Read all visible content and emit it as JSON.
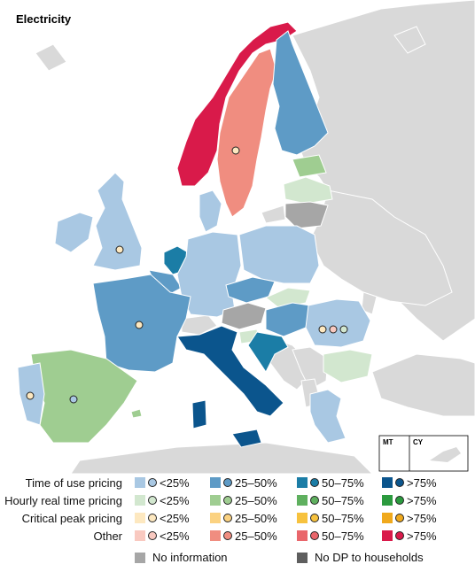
{
  "title": "Electricity",
  "inset": {
    "left_label": "MT",
    "right_label": "CY"
  },
  "legend": {
    "rows": [
      {
        "label": "Time of use  pricing",
        "items": [
          {
            "text": "<25%",
            "color": "#a9c8e3",
            "dot": "#a9c8e3"
          },
          {
            "text": "25–50%",
            "color": "#5e9bc6",
            "dot": "#5e9bc6"
          },
          {
            "text": "50–75%",
            "color": "#1b7da6",
            "dot": "#1b7da6"
          },
          {
            "text": ">75%",
            "color": "#0b558d",
            "dot": "#0b558d"
          }
        ]
      },
      {
        "label": "Hourly real time pricing",
        "items": [
          {
            "text": "<25%",
            "color": "#d2e7cf",
            "dot": "#d2e7cf"
          },
          {
            "text": "25–50%",
            "color": "#9fcd91",
            "dot": "#9fcd91"
          },
          {
            "text": "50–75%",
            "color": "#5fb05f",
            "dot": "#5fb05f"
          },
          {
            "text": ">75%",
            "color": "#2b9a3e",
            "dot": "#2b9a3e"
          }
        ]
      },
      {
        "label": "Critical peak pricing",
        "items": [
          {
            "text": "<25%",
            "color": "#fde8c0",
            "dot": "#fde8c0"
          },
          {
            "text": "25–50%",
            "color": "#fbd281",
            "dot": "#fbd281"
          },
          {
            "text": "50–75%",
            "color": "#f7c23e",
            "dot": "#f7c23e"
          },
          {
            "text": ">75%",
            "color": "#f0a91c",
            "dot": "#f0a91c"
          }
        ]
      },
      {
        "label": "Other",
        "items": [
          {
            "text": "<25%",
            "color": "#f9c9c0",
            "dot": "#f9c9c0"
          },
          {
            "text": "25–50%",
            "color": "#f08d80",
            "dot": "#f08d80"
          },
          {
            "text": "50–75%",
            "color": "#e9666b",
            "dot": "#e9666b"
          },
          {
            "text": ">75%",
            "color": "#d91a4a",
            "dot": "#d91a4a"
          }
        ]
      }
    ],
    "no_info": {
      "text": "No information",
      "color": "#a6a6a6"
    },
    "no_dp": {
      "text": "No DP to households",
      "color": "#5e5e5e"
    }
  },
  "colors": {
    "sea": "#ffffff",
    "background_land": "#d9d9d9",
    "border": "#ffffff",
    "tou_lt25": "#a9c8e3",
    "tou_25_50": "#5e9bc6",
    "tou_50_75": "#1b7da6",
    "tou_gt75": "#0b558d",
    "rt_lt25": "#d2e7cf",
    "rt_25_50": "#9fcd91",
    "cp_lt25": "#fde8c0",
    "other_25_50": "#f08d80",
    "other_gt75": "#d91a4a",
    "no_info": "#a6a6a6"
  }
}
